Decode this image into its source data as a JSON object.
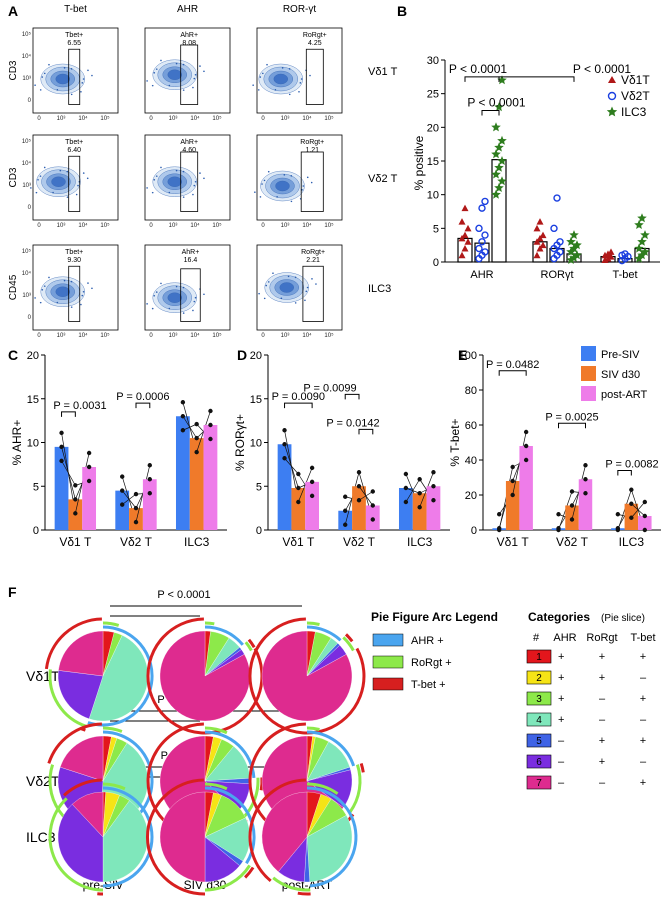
{
  "panel_labels": {
    "A": "A",
    "B": "B",
    "C": "C",
    "D": "D",
    "E": "E",
    "F": "F"
  },
  "panelA": {
    "col_titles": [
      "T-bet",
      "AHR",
      "ROR-γt"
    ],
    "row_labels": [
      "Vδ1 T",
      "Vδ2 T",
      "ILC3"
    ],
    "y_axis_labels": [
      "CD3",
      "CD3",
      "CD45"
    ],
    "gates": [
      [
        "Tbet+",
        "6.55",
        "AhR+",
        "8.08",
        "RoRgt+",
        "4.25"
      ],
      [
        "Tbet+",
        "6.40",
        "AhR+",
        "4.60",
        "RoRgt+",
        "1.21"
      ],
      [
        "Tbet+",
        "9.30",
        "AhR+",
        "16.4",
        "RoRgt+",
        "2.21"
      ]
    ],
    "y_ticks": [
      "10⁵",
      "10⁴",
      "10³",
      "0"
    ],
    "x_ticks": [
      "0",
      "10³",
      "10⁴",
      "10⁵"
    ]
  },
  "panelB": {
    "chart_data": {
      "type": "scatter",
      "ylabel": "% positive",
      "ylim": [
        0,
        30
      ],
      "yticks": [
        "0",
        "5",
        "10",
        "15",
        "20",
        "25",
        "30"
      ],
      "categories": [
        "AHR",
        "RORγt",
        "T-bet"
      ],
      "series": [
        {
          "name": "Vδ1T",
          "color": "#b01818",
          "marker": "triangle",
          "means": [
            3.5,
            3.0,
            0.8
          ],
          "points": [
            [
              1,
              2,
              3,
              3.5,
              4,
              5,
              6,
              8
            ],
            [
              1,
              2,
              2.5,
              3,
              3.5,
              4,
              5,
              6
            ],
            [
              0.3,
              0.5,
              0.8,
              1,
              1.2,
              1.5
            ]
          ]
        },
        {
          "name": "Vδ2T",
          "color": "#1a3fe0",
          "marker": "circle",
          "means": [
            2.8,
            2.0,
            0.5
          ],
          "points": [
            [
              0.5,
              1,
              1.5,
              2,
              3,
              4,
              5,
              8,
              9
            ],
            [
              0.5,
              1,
              1.5,
              2,
              2.5,
              3,
              5,
              9.5
            ],
            [
              0.2,
              0.5,
              0.8,
              1,
              1.2
            ]
          ]
        },
        {
          "name": "ILC3",
          "color": "#2e7d1e",
          "marker": "star",
          "means": [
            15.2,
            1.2,
            2.0
          ],
          "points": [
            [
              10,
              11,
              12,
              13,
              14,
              15,
              16,
              17,
              18,
              20,
              23,
              27
            ],
            [
              0.3,
              0.6,
              1,
              1.5,
              2,
              2.5,
              3,
              4
            ],
            [
              0.5,
              1,
              1.5,
              2,
              3,
              4,
              5.5,
              6.5
            ]
          ]
        }
      ],
      "comparisons": [
        {
          "label": "P < 0.0001",
          "y": 27.5
        },
        {
          "label": "P < 0.0001",
          "y": 22.5
        },
        {
          "label": "P < 0.0001",
          "y": 27.5
        }
      ]
    }
  },
  "legendCDE": [
    {
      "name": "Pre-SIV",
      "color": "#3d7ef2"
    },
    {
      "name": "SIV d30",
      "color": "#f07a2a"
    },
    {
      "name": "post-ART",
      "color": "#ee7ce9"
    }
  ],
  "panelC": {
    "chart_data": {
      "type": "bar",
      "ylabel": "% AHR+",
      "ylim": [
        0,
        20
      ],
      "yticks": [
        "0",
        "5",
        "10",
        "15",
        "20"
      ],
      "categories": [
        "Vδ1 T",
        "Vδ2 T",
        "ILC3"
      ],
      "values": [
        [
          9.5,
          3.5,
          7.2
        ],
        [
          4.5,
          2.5,
          5.8
        ],
        [
          13.0,
          10.5,
          12.0
        ]
      ],
      "pvalues": [
        {
          "label": "P = 0.0031",
          "group": 0
        },
        {
          "label": "P = 0.0006",
          "group": 1
        }
      ]
    }
  },
  "panelD": {
    "chart_data": {
      "type": "bar",
      "ylabel": "% RORγt+",
      "ylim": [
        0,
        20
      ],
      "yticks": [
        "0",
        "5",
        "10",
        "15",
        "20"
      ],
      "categories": [
        "Vδ1 T",
        "Vδ2 T",
        "ILC3"
      ],
      "values": [
        [
          9.8,
          4.8,
          5.5
        ],
        [
          2.2,
          5.0,
          2.8
        ],
        [
          4.8,
          4.2,
          5.0
        ]
      ],
      "pvalues": [
        {
          "label": "P = 0.0090"
        },
        {
          "label": "P = 0.0099"
        },
        {
          "label": "P = 0.0142"
        }
      ]
    }
  },
  "panelE": {
    "chart_data": {
      "type": "bar",
      "ylabel": "% T-bet+",
      "ylim": [
        0,
        100
      ],
      "yticks": [
        "0",
        "20",
        "40",
        "60",
        "80",
        "100"
      ],
      "categories": [
        "Vδ1 T",
        "Vδ2 T",
        "ILC3"
      ],
      "values": [
        [
          1,
          28,
          48
        ],
        [
          1,
          14,
          29
        ],
        [
          1,
          15,
          8
        ]
      ],
      "pvalues": [
        {
          "label": "P = 0.0482"
        },
        {
          "label": "P = 0.0025"
        },
        {
          "label": "P = 0.0082"
        }
      ]
    }
  },
  "panelF": {
    "row_labels": [
      "Vδ1T",
      "Vδ2T",
      "ILC3"
    ],
    "col_labels": [
      "pre-SIV",
      "SIV d30",
      "post-ART"
    ],
    "pvalues": [
      "P < 0.0001",
      "P < 0.0001",
      "P ≤ 0.005"
    ],
    "arc_legend_title": "Pie Figure Arc Legend",
    "arc_legend": [
      {
        "name": "AHR +",
        "color": "#4aa5ef"
      },
      {
        "name": "RoRgt +",
        "color": "#8de94a"
      },
      {
        "name": "T-bet +",
        "color": "#d71f1f"
      }
    ],
    "categories_title": "Categories",
    "categories_subtitle": "(Pie slice)",
    "categories_headers": [
      "#",
      "AHR",
      "RoRgt",
      "T-bet"
    ],
    "categories": [
      {
        "n": "1",
        "color": "#e3161c",
        "ahr": "+",
        "rorgt": "+",
        "tbet": "+"
      },
      {
        "n": "2",
        "color": "#f6e416",
        "ahr": "+",
        "rorgt": "+",
        "tbet": "–"
      },
      {
        "n": "3",
        "color": "#8de94a",
        "ahr": "+",
        "rorgt": "–",
        "tbet": "+"
      },
      {
        "n": "4",
        "color": "#7fe7bb",
        "ahr": "+",
        "rorgt": "–",
        "tbet": "–"
      },
      {
        "n": "5",
        "color": "#3f63e6",
        "ahr": "–",
        "rorgt": "+",
        "tbet": "+"
      },
      {
        "n": "6",
        "color": "#7a2de0",
        "ahr": "–",
        "rorgt": "+",
        "tbet": "–"
      },
      {
        "n": "7",
        "color": "#de2b8f",
        "ahr": "–",
        "rorgt": "–",
        "tbet": "+"
      }
    ],
    "pies": [
      [
        [
          4,
          0,
          3,
          48,
          0,
          22,
          23
        ],
        [
          2,
          0,
          7,
          5,
          1,
          2,
          83
        ],
        [
          3,
          0,
          6,
          3,
          1,
          4,
          83
        ]
      ],
      [
        [
          3,
          2,
          4,
          42,
          0,
          29,
          20
        ],
        [
          3,
          3,
          5,
          13,
          2,
          11,
          63
        ],
        [
          2,
          1,
          5,
          12,
          1,
          14,
          65
        ]
      ],
      [
        [
          1,
          5,
          4,
          40,
          0,
          38,
          12
        ],
        [
          3,
          3,
          12,
          16,
          2,
          14,
          50
        ],
        [
          5,
          4,
          8,
          32,
          2,
          10,
          39
        ]
      ]
    ]
  }
}
